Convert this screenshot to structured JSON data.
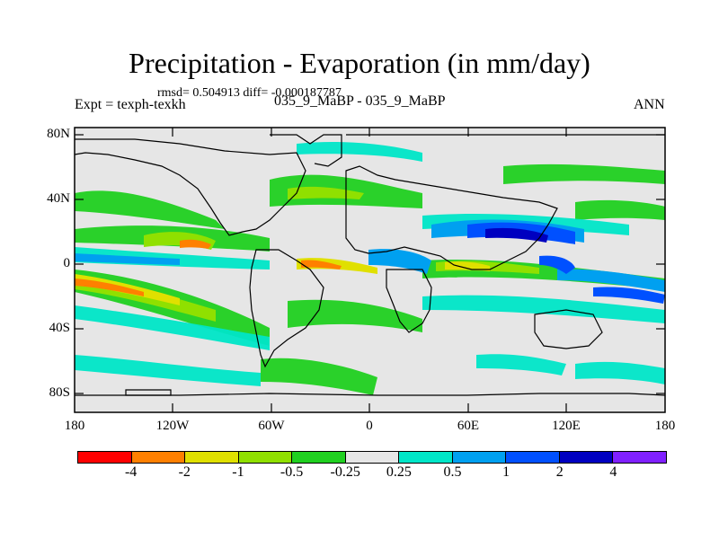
{
  "title": "Precipitation - Evaporation (in mm/day)",
  "stats": "rmsd= 0.504913 diff= -0.000187787",
  "expt": "Expt = texph-texkh",
  "case": "035_9_MaBP - 035_9_MaBP",
  "season": "ANN",
  "lat_labels": [
    "80N",
    "40N",
    "0",
    "40S",
    "80S"
  ],
  "lon_labels": [
    "180",
    "120W",
    "60W",
    "0",
    "60E",
    "120E",
    "180"
  ],
  "colorbar": {
    "colors": [
      "#ff0000",
      "#ff8000",
      "#e0e000",
      "#90e000",
      "#20d020",
      "#e6e6e6",
      "#00e6c8",
      "#00a0f0",
      "#0050ff",
      "#0000c0",
      "#8020ff"
    ],
    "labels": [
      "-4",
      "-2",
      "-1",
      "-0.5",
      "-0.25",
      "0.25",
      "0.5",
      "1",
      "2",
      "4"
    ]
  }
}
